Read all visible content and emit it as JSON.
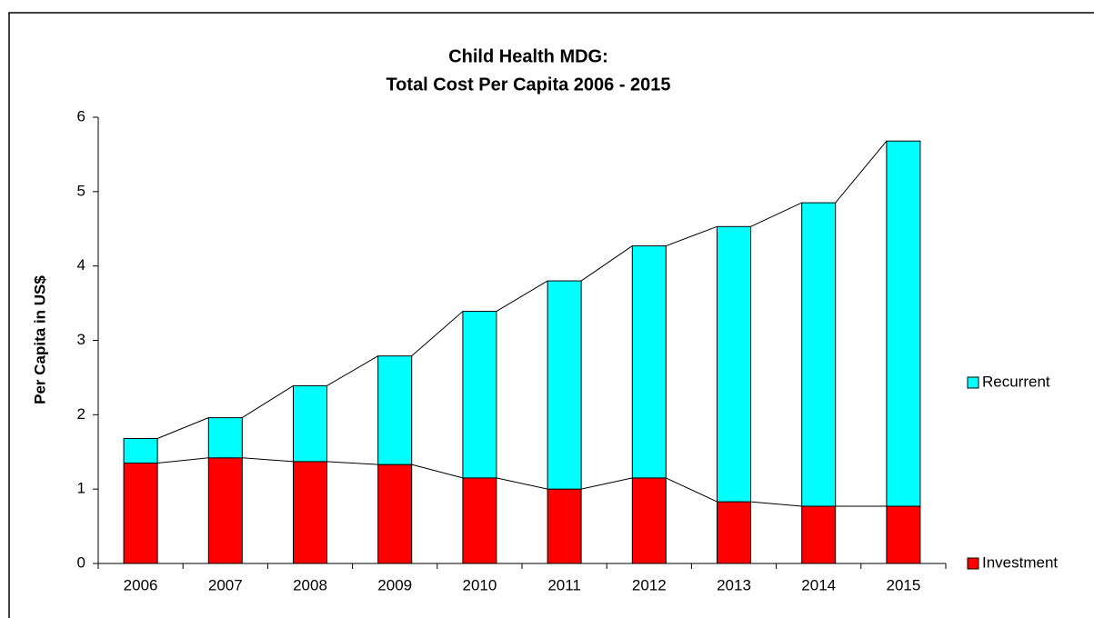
{
  "chart_data": {
    "type": "stacked_bar",
    "title_lines": [
      "Child Health MDG:",
      "Total Cost Per Capita 2006 - 2015"
    ],
    "y_label": "Per Capita in US$",
    "categories": [
      "2006",
      "2007",
      "2008",
      "2009",
      "2010",
      "2011",
      "2012",
      "2013",
      "2014",
      "2015"
    ],
    "series": [
      {
        "name": "Investment",
        "color": "#ff0000",
        "values": [
          1.35,
          1.42,
          1.37,
          1.33,
          1.15,
          1.0,
          1.15,
          0.83,
          0.77,
          0.77
        ]
      },
      {
        "name": "Recurrent",
        "color": "#00ffff",
        "values": [
          0.33,
          0.54,
          1.02,
          1.46,
          2.24,
          2.8,
          3.12,
          3.7,
          4.08,
          4.91
        ]
      }
    ],
    "ylim": [
      0,
      6
    ],
    "yticks": [
      0,
      1,
      2,
      3,
      4,
      5,
      6
    ],
    "series_lines": true
  }
}
